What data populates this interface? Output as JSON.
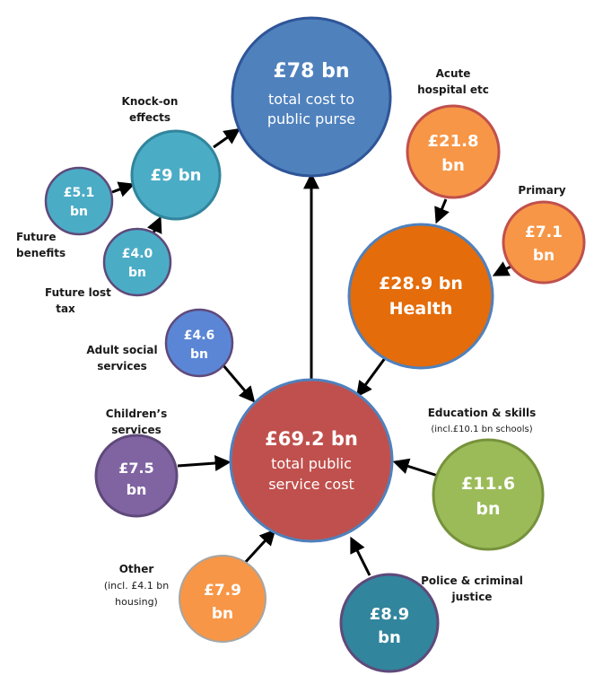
{
  "colors": {
    "dark_blue": "#4f81bd",
    "teal": "#4bacc6",
    "mid_blue": "#5b86d6",
    "dark_orange": "#e46c0a",
    "light_orange": "#f79646",
    "red": "#c0504d",
    "purple": "#8064a2",
    "green": "#9bbb59",
    "dark_teal": "#31859c"
  },
  "nodes": {
    "total_purse": {
      "value": "£78 bn",
      "line1": "total cost to",
      "line2": "public purse"
    },
    "knock_on": {
      "value": "£9 bn",
      "label1": "Knock-on",
      "label2": "effects"
    },
    "future_benefits": {
      "value1": "£5.1",
      "value2": "bn",
      "label1": "Future",
      "label2": "benefits"
    },
    "future_lost_tax": {
      "value1": "£4.0",
      "value2": "bn",
      "label1": "Future lost",
      "label2": "tax"
    },
    "acute": {
      "value1": "£21.8",
      "value2": "bn",
      "label1": "Acute",
      "label2": "hospital etc"
    },
    "primary": {
      "value1": "£7.1",
      "value2": "bn",
      "label1": "Primary"
    },
    "health": {
      "value1": "£28.9 bn",
      "value2": "Health"
    },
    "adult_social": {
      "value1": "£4.6",
      "value2": "bn",
      "label1": "Adult social",
      "label2": "services"
    },
    "public_service": {
      "value": "£69.2 bn",
      "line1": "total public",
      "line2": "service cost"
    },
    "childrens": {
      "value1": "£7.5",
      "value2": "bn",
      "label1": "Children’s",
      "label2": "services"
    },
    "education": {
      "value1": "£11.6",
      "value2": "bn",
      "label1": "Education & skills",
      "note": "(incl.£10.1 bn schools)"
    },
    "other": {
      "value1": "£7.9",
      "value2": "bn",
      "label1": "Other",
      "note1": "(incl. £4.1 bn",
      "note2": "housing)"
    },
    "police": {
      "value1": "£8.9",
      "value2": "bn",
      "label1": "Police & criminal",
      "label2": "justice"
    }
  }
}
